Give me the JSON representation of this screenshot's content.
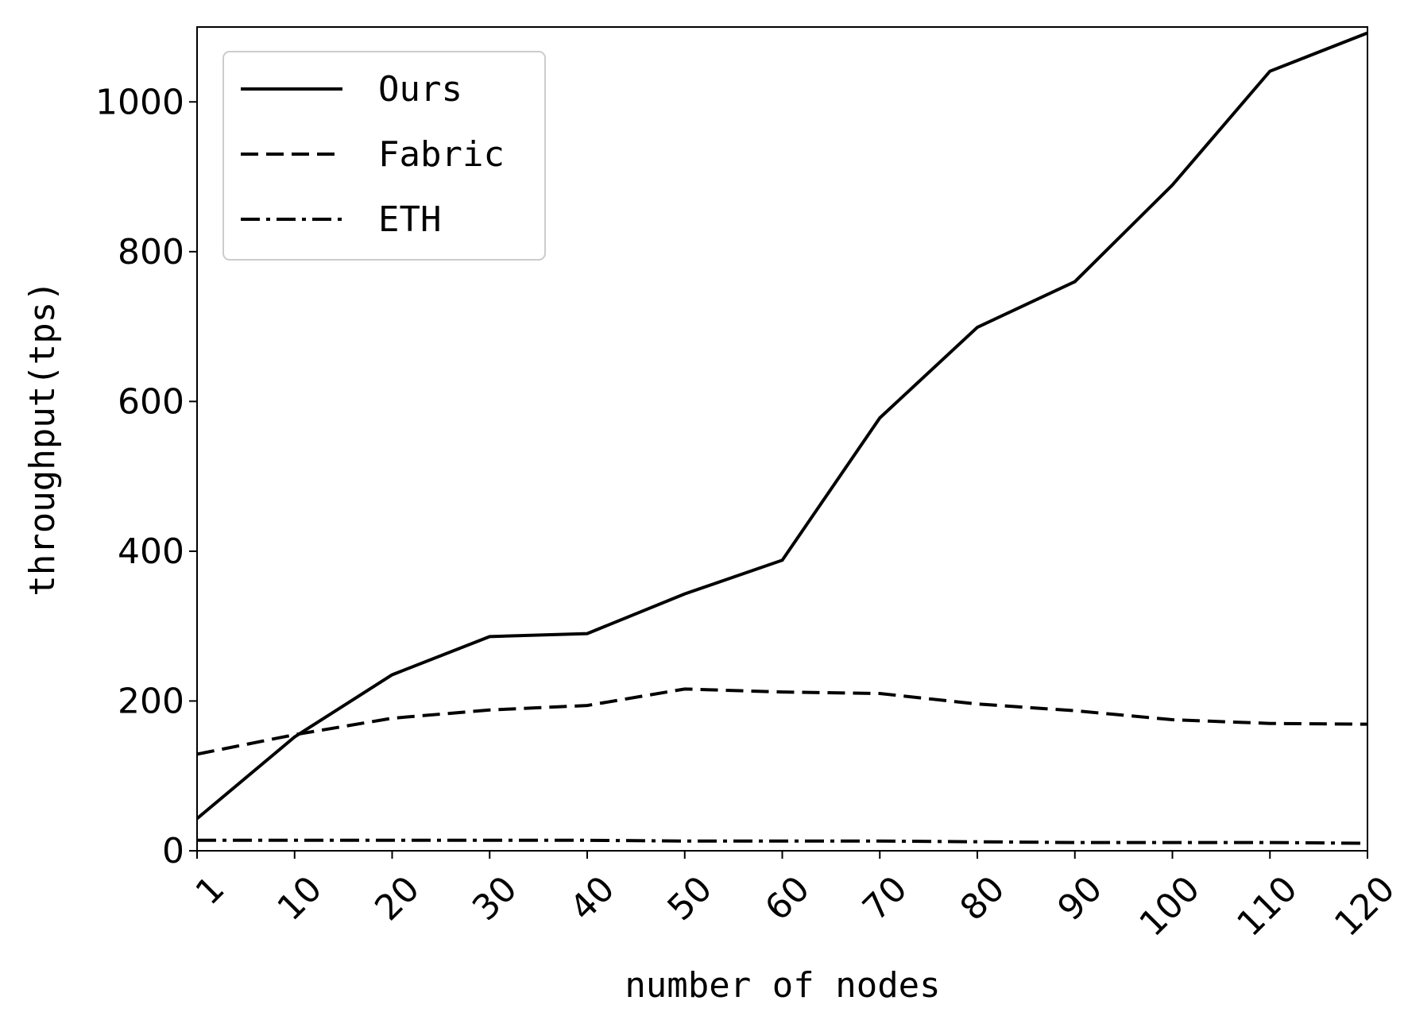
{
  "chart_data": {
    "type": "line",
    "x_label": "number of nodes",
    "y_label": "throughput(tps)",
    "categories": [
      "1",
      "10",
      "20",
      "30",
      "40",
      "50",
      "60",
      "70",
      "80",
      "90",
      "100",
      "110",
      "120"
    ],
    "series": [
      {
        "name": "Ours",
        "color": "#000000",
        "linestyle": "solid",
        "values": [
          43,
          152,
          235,
          286,
          290,
          343,
          388,
          578,
          699,
          760,
          889,
          1041,
          1092
        ]
      },
      {
        "name": "Fabric",
        "color": "#000000",
        "linestyle": "dashed",
        "values": [
          129,
          155,
          177,
          188,
          194,
          216,
          212,
          210,
          196,
          187,
          175,
          170,
          169
        ]
      },
      {
        "name": "ETH",
        "color": "#000000",
        "linestyle": "dashdot",
        "values": [
          14,
          14,
          14,
          14,
          14,
          13,
          13,
          13,
          12,
          11,
          11,
          11,
          10
        ]
      }
    ],
    "ylim": [
      0,
      1100
    ],
    "yticks": [
      0,
      200,
      400,
      600,
      800,
      1000
    ],
    "grid": false,
    "legend": "upper left"
  }
}
